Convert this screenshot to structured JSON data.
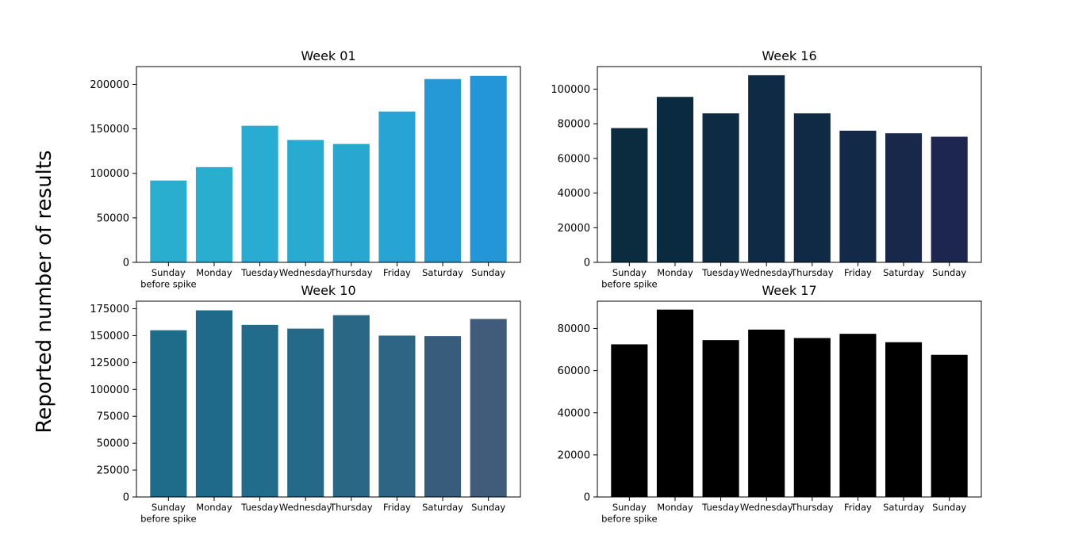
{
  "figure": {
    "ylabel": "Reported number of results"
  },
  "chart_data": [
    {
      "type": "bar",
      "title": "Week 01",
      "categories": [
        "Sunday\nbefore spike",
        "Monday",
        "Tuesday",
        "Wednesday",
        "Thursday",
        "Friday",
        "Saturday",
        "Sunday"
      ],
      "values": [
        92000,
        107000,
        153500,
        137500,
        133000,
        169500,
        206000,
        209500
      ],
      "colors": [
        "#29aed0",
        "#29aed0",
        "#29acd1",
        "#29aad1",
        "#28a8d1",
        "#27a3d4",
        "#2598d6",
        "#2296d6"
      ],
      "ylim": [
        0,
        220000
      ],
      "yticks": [
        0,
        50000,
        100000,
        150000,
        200000
      ],
      "xlabel": "",
      "ylabel": ""
    },
    {
      "type": "bar",
      "title": "Week 16",
      "categories": [
        "Sunday\nbefore spike",
        "Monday",
        "Tuesday",
        "Wednesday",
        "Thursday",
        "Friday",
        "Saturday",
        "Sunday"
      ],
      "values": [
        77500,
        95500,
        86000,
        108000,
        86000,
        76000,
        74500,
        72500
      ],
      "colors": [
        "#0b2b3f",
        "#0a2b3f",
        "#0d2b42",
        "#0f2a44",
        "#102a45",
        "#132948",
        "#17284b",
        "#1c264e"
      ],
      "ylim": [
        0,
        113000
      ],
      "yticks": [
        0,
        20000,
        40000,
        60000,
        80000,
        100000
      ],
      "xlabel": "",
      "ylabel": ""
    },
    {
      "type": "bar",
      "title": "Week 10",
      "categories": [
        "Sunday\nbefore spike",
        "Monday",
        "Tuesday",
        "Wednesday",
        "Thursday",
        "Friday",
        "Saturday",
        "Sunday"
      ],
      "values": [
        155000,
        173500,
        160000,
        156500,
        169000,
        150000,
        149500,
        165500
      ],
      "colors": [
        "#1f6b8a",
        "#1f6a8b",
        "#216b8b",
        "#246a88",
        "#2a6686",
        "#2e6484",
        "#385d7c",
        "#405c7a"
      ],
      "ylim": [
        0,
        182000
      ],
      "yticks": [
        0,
        25000,
        50000,
        75000,
        100000,
        125000,
        150000,
        175000
      ],
      "xlabel": "",
      "ylabel": ""
    },
    {
      "type": "bar",
      "title": "Week 17",
      "categories": [
        "Sunday\nbefore spike",
        "Monday",
        "Tuesday",
        "Wednesday",
        "Thursday",
        "Friday",
        "Saturday",
        "Sunday"
      ],
      "values": [
        72500,
        89000,
        74500,
        79500,
        75500,
        77500,
        73500,
        67500
      ],
      "colors": [
        "#000000",
        "#000000",
        "#000000",
        "#000000",
        "#000000",
        "#000000",
        "#000000",
        "#000000"
      ],
      "ylim": [
        0,
        93000
      ],
      "yticks": [
        0,
        20000,
        40000,
        60000,
        80000
      ],
      "xlabel": "",
      "ylabel": ""
    }
  ]
}
